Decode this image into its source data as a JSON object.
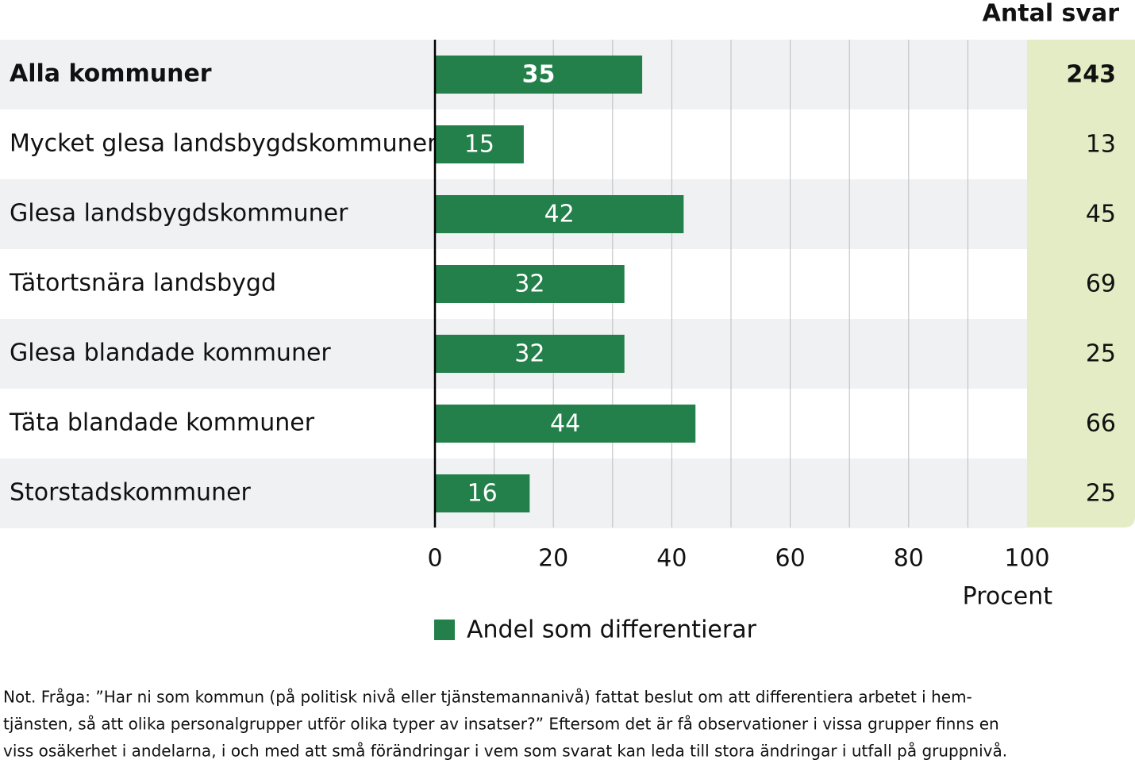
{
  "chart_data": {
    "type": "bar",
    "orientation": "horizontal",
    "categories": [
      "Alla kommuner",
      "Mycket glesa landsbygdskommuner",
      "Glesa landsbygdskommuner",
      "Tätortsnära landsbygd",
      "Glesa blandade kommuner",
      "Täta blandade kommuner",
      "Storstadskommuner"
    ],
    "series": [
      {
        "name": "Andel som differentierar",
        "color": "#23804a",
        "values": [
          35,
          15,
          42,
          32,
          32,
          44,
          16
        ]
      }
    ],
    "counts": {
      "title": "Antal svar",
      "values": [
        243,
        13,
        45,
        69,
        25,
        66,
        25
      ],
      "color": "#e3ecc4"
    },
    "xlim": [
      0,
      100
    ],
    "xticks": [
      0,
      20,
      40,
      60,
      80,
      100
    ],
    "xgrid": [
      10,
      20,
      30,
      40,
      50,
      60,
      70,
      80,
      90
    ],
    "xlabel": "Procent",
    "note": [
      "Not. Fråga: ”Har ni som kommun (på politisk nivå eller tjänstemannanivå) fattat beslut om att differentiera arbetet i hem-",
      "tjänsten, så att olika personalgrupper utför olika typer av insatser?” Eftersom det är få observationer i vissa grupper finns en",
      "viss osäkerhet i andelarna, i och med att små förändringar i vem som svarat kan leda till stora ändringar i utfall på gruppnivå."
    ]
  }
}
